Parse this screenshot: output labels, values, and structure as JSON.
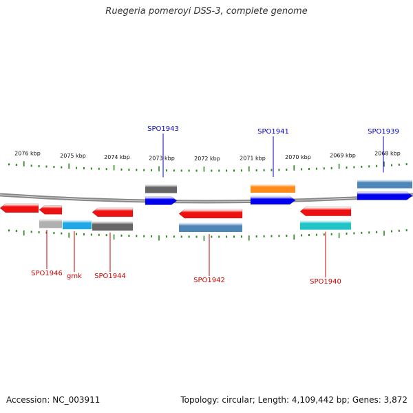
{
  "title": "Ruegeria pomeroyi DSS-3, complete genome",
  "footer": {
    "accession": "Accession: NC_003911",
    "summary": "Topology: circular; Length: 4,109,442 bp; Genes: 3,872"
  },
  "colors": {
    "ruler": "#2a8a1e",
    "backbone": "#888888",
    "top_label": "#0000cc",
    "bottom_label": "#cc0000",
    "cds_forward": "#0000ee",
    "cds_reverse": "#ee1111",
    "steelblue": "#4f86b8",
    "orange": "#ff8c1a",
    "gray": "#666666",
    "lightgray": "#b0b0b0",
    "skyblue": "#1fa8e8",
    "cyan": "#22c4c8"
  },
  "kbp_ticks": [
    "2076 kbp",
    "2075 kbp",
    "2074 kbp",
    "2073 kbp",
    "2072 kbp",
    "2071 kbp",
    "2070 kbp",
    "2069 kbp",
    "2068 kbp"
  ],
  "genes": [
    {
      "label": "SPO1946",
      "strand": "reverse",
      "side": "bottom",
      "feature_color": "lightgray"
    },
    {
      "label": "gmk",
      "strand": "reverse",
      "side": "bottom",
      "feature_color": "skyblue"
    },
    {
      "label": "SPO1944",
      "strand": "reverse",
      "side": "bottom",
      "feature_color": "gray"
    },
    {
      "label": "SPO1943",
      "strand": "forward",
      "side": "top",
      "feature_color": "gray"
    },
    {
      "label": "SPO1942",
      "strand": "reverse",
      "side": "bottom",
      "feature_color": "steelblue"
    },
    {
      "label": "SPO1941",
      "strand": "forward",
      "side": "top",
      "feature_color": "orange"
    },
    {
      "label": "SPO1940",
      "strand": "reverse",
      "side": "bottom",
      "feature_color": "cyan"
    },
    {
      "label": "SPO1939",
      "strand": "forward",
      "side": "top",
      "feature_color": "steelblue"
    }
  ]
}
